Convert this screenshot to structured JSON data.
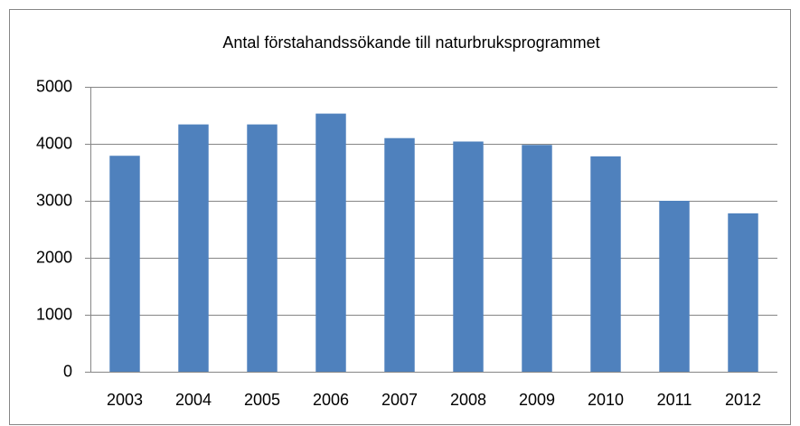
{
  "chart_data": {
    "type": "bar",
    "title": "Antal förstahandssökande till naturbruksprogrammet",
    "categories": [
      "2003",
      "2004",
      "2005",
      "2006",
      "2007",
      "2008",
      "2009",
      "2010",
      "2011",
      "2012"
    ],
    "values": [
      3790,
      4340,
      4340,
      4530,
      4100,
      4040,
      3980,
      3780,
      3000,
      2780
    ],
    "color": "#4f81bd",
    "ylim": [
      0,
      5000
    ],
    "yticks": [
      0,
      1000,
      2000,
      3000,
      4000,
      5000
    ],
    "grid": true
  }
}
